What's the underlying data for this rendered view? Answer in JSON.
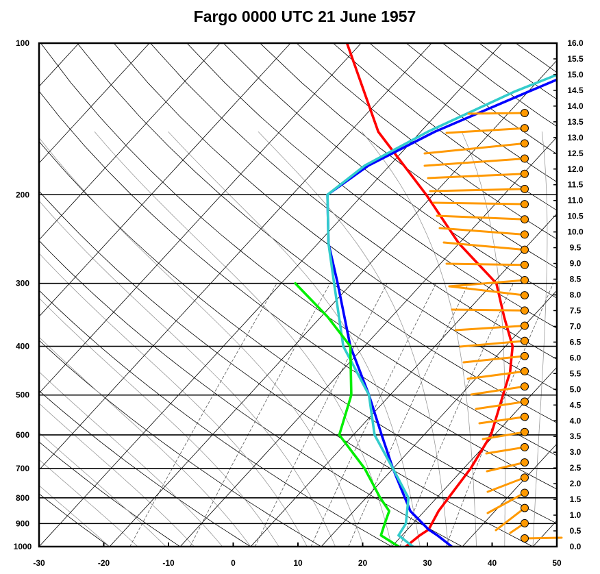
{
  "chart_data": {
    "type": "line",
    "title": "Fargo 0000 UTC 21 June 1957",
    "x_ticks": [
      "-30",
      "-20",
      "-10",
      "0",
      "10",
      "20",
      "30",
      "40",
      "50"
    ],
    "xlim": [
      -30,
      50
    ],
    "pressure_ticks": [
      "100",
      "200",
      "300",
      "400",
      "500",
      "600",
      "700",
      "800",
      "900",
      "1000"
    ],
    "ylim": [
      1000,
      100
    ],
    "y_scale": "log",
    "height_ticks": [
      "16.0",
      "15.5",
      "15.0",
      "14.5",
      "14.0",
      "13.5",
      "13.0",
      "12.5",
      "12.0",
      "11.5",
      "11.0",
      "10.5",
      "10.0",
      "9.5",
      "9.0",
      "8.5",
      "8.0",
      "7.5",
      "7.0",
      "6.5",
      "6.0",
      "5.5",
      "5.0",
      "4.5",
      "4.0",
      "3.5",
      "3.0",
      "2.5",
      "2.0",
      "1.5",
      "1.0",
      "0.5",
      "0.0"
    ],
    "isotherm_color": "#000000",
    "dry_adiabat_color": "#000000",
    "moist_adiabat_color": "#999999",
    "mixing_ratio_color": "#555555",
    "series": [
      {
        "color": "#ff0000",
        "points": [
          [
            1000,
            22
          ],
          [
            950,
            22.5
          ],
          [
            925,
            23
          ],
          [
            850,
            22
          ],
          [
            700,
            21
          ],
          [
            600,
            19.5
          ],
          [
            500,
            16
          ],
          [
            450,
            14
          ],
          [
            400,
            11
          ],
          [
            350,
            6
          ],
          [
            300,
            0.5
          ],
          [
            250,
            -10
          ],
          [
            200,
            -21
          ],
          [
            150,
            -36
          ],
          [
            100,
            -52
          ]
        ]
      },
      {
        "color": "#0000ff",
        "points": [
          [
            1000,
            28.5
          ],
          [
            950,
            25
          ],
          [
            925,
            23
          ],
          [
            850,
            18
          ],
          [
            700,
            10
          ],
          [
            600,
            4
          ],
          [
            500,
            -3
          ],
          [
            400,
            -12
          ],
          [
            300,
            -22
          ],
          [
            250,
            -28.5
          ],
          [
            200,
            -35
          ],
          [
            175,
            -33
          ],
          [
            150,
            -28
          ],
          [
            125,
            -20
          ],
          [
            100,
            -10
          ]
        ]
      },
      {
        "color": "#33cccc",
        "points": [
          [
            1000,
            23
          ],
          [
            950,
            19.5
          ],
          [
            900,
            19
          ],
          [
            800,
            16
          ],
          [
            700,
            10
          ],
          [
            600,
            3
          ],
          [
            500,
            -3
          ],
          [
            400,
            -13
          ],
          [
            300,
            -22.5
          ],
          [
            250,
            -28.5
          ],
          [
            200,
            -35
          ],
          [
            175,
            -33.5
          ],
          [
            150,
            -29
          ],
          [
            125,
            -22
          ],
          [
            100,
            -11
          ]
        ]
      },
      {
        "color": "#00ee00",
        "points": [
          [
            1000,
            21
          ],
          [
            950,
            17
          ],
          [
            900,
            16
          ],
          [
            850,
            15
          ],
          [
            800,
            12
          ],
          [
            700,
            6
          ],
          [
            600,
            -2
          ],
          [
            500,
            -5.5
          ],
          [
            400,
            -12
          ],
          [
            350,
            -19
          ],
          [
            300,
            -28
          ]
        ]
      }
    ],
    "wind_color": "#ff9900",
    "wind_barbs": [
      {
        "height_km": 0.0,
        "end_x": 820,
        "end_y": 785
      },
      {
        "height_km": 0.5,
        "end_x": 745,
        "end_y": 778
      },
      {
        "height_km": 1.0,
        "end_x": 724,
        "end_y": 774
      },
      {
        "height_km": 1.5,
        "end_x": 712,
        "end_y": 749
      },
      {
        "height_km": 2.0,
        "end_x": 712,
        "end_y": 718
      },
      {
        "height_km": 2.5,
        "end_x": 711,
        "end_y": 688
      },
      {
        "height_km": 3.0,
        "end_x": 710,
        "end_y": 662
      },
      {
        "height_km": 3.5,
        "end_x": 705,
        "end_y": 641
      },
      {
        "height_km": 4.0,
        "end_x": 700,
        "end_y": 618
      },
      {
        "height_km": 4.5,
        "end_x": 695,
        "end_y": 597
      },
      {
        "height_km": 5.0,
        "end_x": 688,
        "end_y": 576
      },
      {
        "height_km": 5.5,
        "end_x": 683,
        "end_y": 553
      },
      {
        "height_km": 6.0,
        "end_x": 677,
        "end_y": 529
      },
      {
        "height_km": 6.5,
        "end_x": 672,
        "end_y": 506
      },
      {
        "height_km": 7.0,
        "end_x": 665,
        "end_y": 482
      },
      {
        "height_km": 7.5,
        "end_x": 660,
        "end_y": 452
      },
      {
        "height_km": 8.0,
        "end_x": 656,
        "end_y": 418
      },
      {
        "height_km": 8.5,
        "end_x": 656,
        "end_y": 418
      },
      {
        "height_km": 9.0,
        "end_x": 652,
        "end_y": 385
      },
      {
        "height_km": 9.5,
        "end_x": 648,
        "end_y": 354
      },
      {
        "height_km": 10.0,
        "end_x": 642,
        "end_y": 333
      },
      {
        "height_km": 10.5,
        "end_x": 638,
        "end_y": 315
      },
      {
        "height_km": 11.0,
        "end_x": 633,
        "end_y": 296
      },
      {
        "height_km": 11.5,
        "end_x": 628,
        "end_y": 279
      },
      {
        "height_km": 12.0,
        "end_x": 625,
        "end_y": 260
      },
      {
        "height_km": 12.5,
        "end_x": 620,
        "end_y": 242
      },
      {
        "height_km": 13.0,
        "end_x": 620,
        "end_y": 224
      },
      {
        "height_km": 13.5,
        "end_x": 652,
        "end_y": 194
      },
      {
        "height_km": 14.0,
        "end_x": 684,
        "end_y": 166
      }
    ]
  }
}
